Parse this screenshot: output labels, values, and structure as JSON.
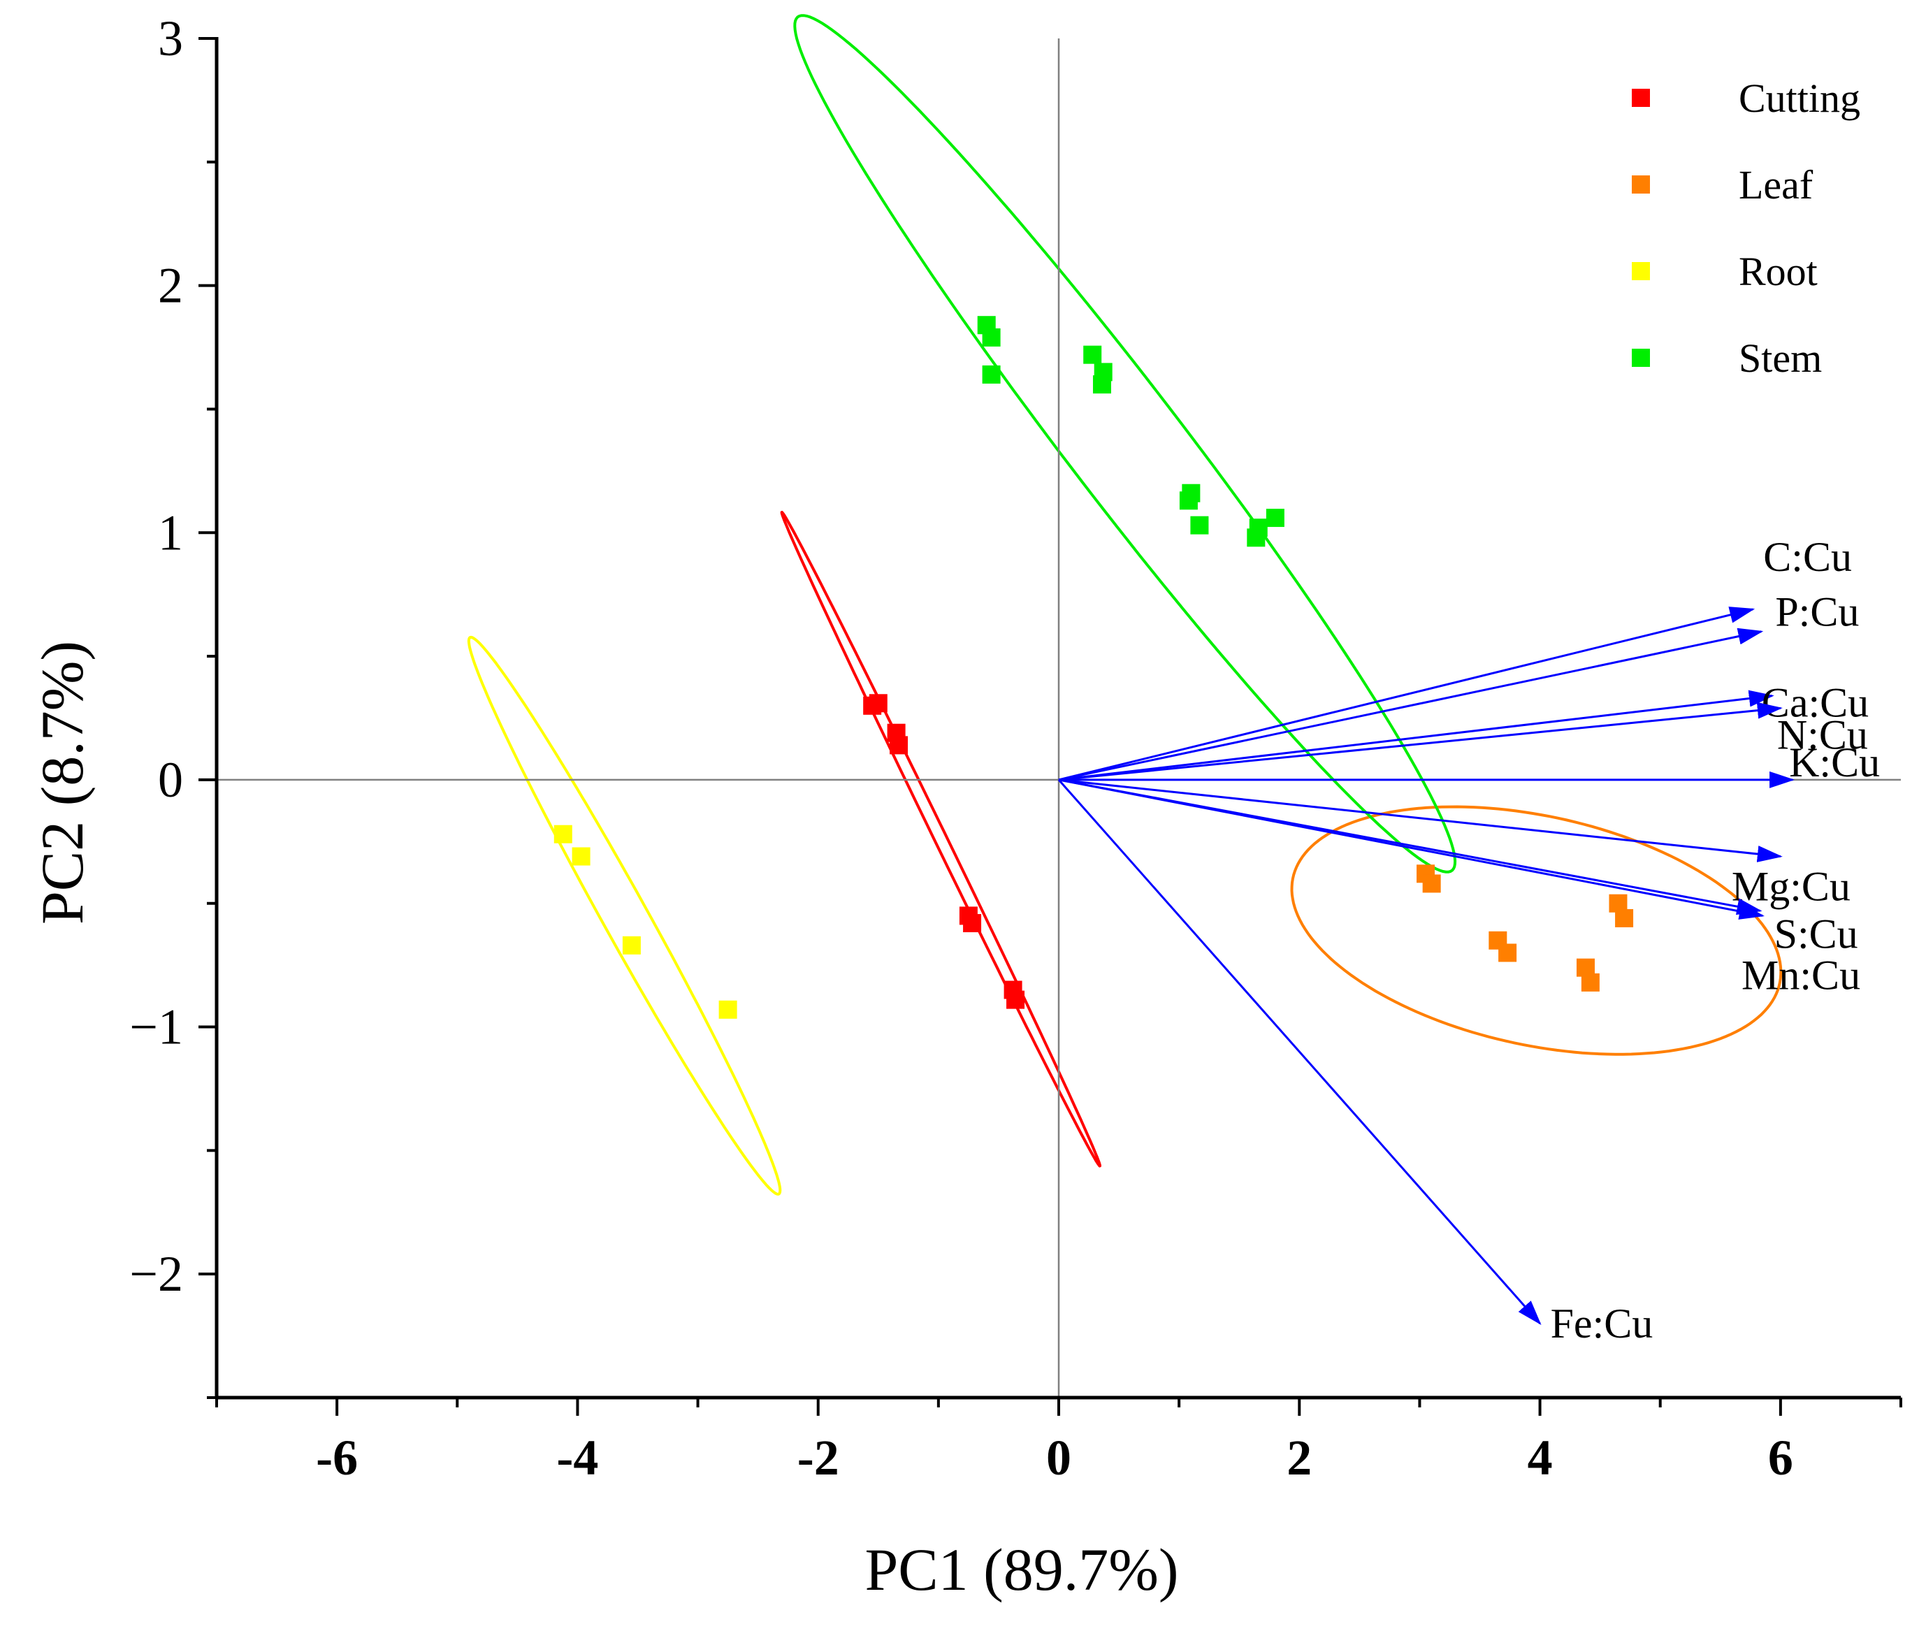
{
  "chart_data": {
    "type": "scatter",
    "title": "",
    "xlabel": "PC1 (89.7%)",
    "ylabel": "PC2 (8.7%)",
    "xlim": [
      -7,
      7
    ],
    "ylim": [
      -2.5,
      3
    ],
    "xticks": [
      -6,
      -4,
      -2,
      0,
      2,
      4,
      6
    ],
    "xtick_labels": [
      "-6",
      "-4",
      "-2",
      "0",
      "2",
      "4",
      "6"
    ],
    "yticks": [
      -2,
      -1,
      0,
      1,
      2,
      3
    ],
    "ytick_labels": [
      "−2",
      "−1",
      "0",
      "1",
      "2",
      "3"
    ],
    "grid": false,
    "legend_position": "top-right",
    "series": [
      {
        "name": "Cutting",
        "color": "#ff0000",
        "points": [
          [
            -1.55,
            0.3
          ],
          [
            -1.5,
            0.31
          ],
          [
            -1.35,
            0.19
          ],
          [
            -1.33,
            0.14
          ],
          [
            -0.75,
            -0.55
          ],
          [
            -0.72,
            -0.58
          ],
          [
            -0.38,
            -0.85
          ],
          [
            -0.36,
            -0.89
          ]
        ],
        "ellipse": {
          "center": [
            -0.98,
            -0.24
          ],
          "semi_axes": [
            1.87,
            0.04
          ],
          "angle_deg": -45
        }
      },
      {
        "name": "Leaf",
        "color": "#ff7f00",
        "points": [
          [
            3.05,
            -0.38
          ],
          [
            3.1,
            -0.42
          ],
          [
            3.65,
            -0.65
          ],
          [
            3.73,
            -0.7
          ],
          [
            4.38,
            -0.76
          ],
          [
            4.42,
            -0.82
          ],
          [
            4.65,
            -0.5
          ],
          [
            4.7,
            -0.56
          ]
        ],
        "ellipse": {
          "center": [
            3.97,
            -0.61
          ],
          "semi_axes": [
            2.04,
            0.47
          ],
          "angle_deg": -5
        }
      },
      {
        "name": "Root",
        "color": "#ffff00",
        "points": [
          [
            -4.12,
            -0.22
          ],
          [
            -3.97,
            -0.31
          ],
          [
            -3.55,
            -0.67
          ],
          [
            -2.75,
            -0.93
          ]
        ],
        "ellipse": {
          "center": [
            -3.61,
            -0.55
          ],
          "semi_axes": [
            1.71,
            0.14
          ],
          "angle_deg": -41
        }
      },
      {
        "name": "Stem",
        "color": "#00ee00",
        "points": [
          [
            -0.6,
            1.84
          ],
          [
            -0.56,
            1.79
          ],
          [
            -0.56,
            1.64
          ],
          [
            0.28,
            1.72
          ],
          [
            0.37,
            1.65
          ],
          [
            0.36,
            1.6
          ],
          [
            1.08,
            1.13
          ],
          [
            1.1,
            1.16
          ],
          [
            1.17,
            1.03
          ],
          [
            1.64,
            0.98
          ],
          [
            1.66,
            1.02
          ],
          [
            1.8,
            1.06
          ]
        ],
        "ellipse": {
          "center": [
            0.55,
            1.36
          ],
          "semi_axes": [
            3.23,
            0.32
          ],
          "angle_deg": -32
        }
      }
    ],
    "loadings": [
      {
        "name": "C:Cu",
        "x": 5.77,
        "y": 0.69
      },
      {
        "name": "P:Cu",
        "x": 5.84,
        "y": 0.6
      },
      {
        "name": "Ca:Cu",
        "x": 5.93,
        "y": 0.34
      },
      {
        "name": "N:Cu",
        "x": 6.0,
        "y": 0.29
      },
      {
        "name": "K:Cu",
        "x": 6.1,
        "y": 0.0
      },
      {
        "name": "Mg:Cu",
        "x": 6.0,
        "y": -0.31
      },
      {
        "name": "S:Cu",
        "x": 5.83,
        "y": -0.53
      },
      {
        "name": "Mn:Cu",
        "x": 5.85,
        "y": -0.55
      },
      {
        "name": "Fe:Cu",
        "x": 4.0,
        "y": -2.2
      }
    ],
    "loading_color": "#0000ff"
  }
}
